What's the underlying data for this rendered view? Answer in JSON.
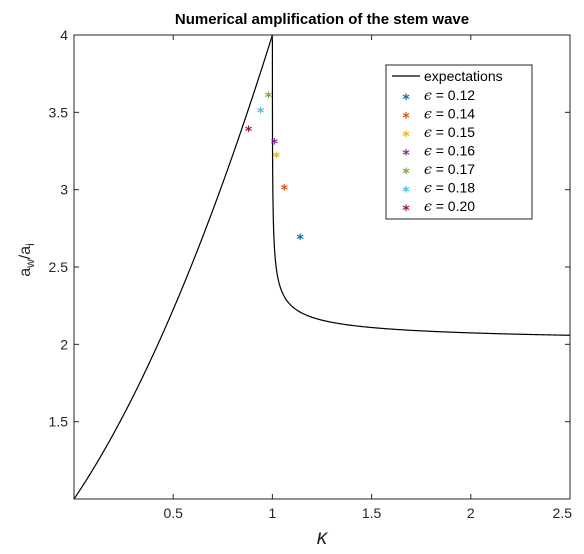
{
  "chart_data": {
    "type": "scatter",
    "title": "Numerical amplification of the stem wave",
    "xlabel": "κ",
    "ylabel": {
      "main": "a",
      "sub1": "w",
      "sep": "/a",
      "sub2": "i"
    },
    "xlim": [
      0,
      2.5
    ],
    "ylim": [
      1,
      4
    ],
    "xticks": [
      {
        "value": 0.5,
        "label": "0.5"
      },
      {
        "value": 1,
        "label": "1"
      },
      {
        "value": 1.5,
        "label": "1.5"
      },
      {
        "value": 2,
        "label": "2"
      },
      {
        "value": 2.5,
        "label": "2.5"
      }
    ],
    "yticks": [
      {
        "value": 1.5,
        "label": "1.5"
      },
      {
        "value": 2,
        "label": "2"
      },
      {
        "value": 2.5,
        "label": "2.5"
      },
      {
        "value": 3,
        "label": "3"
      },
      {
        "value": 3.5,
        "label": "3.5"
      },
      {
        "value": 4,
        "label": "4"
      }
    ],
    "grid": false,
    "legend_position": "top-right",
    "curve": {
      "name": "expectations",
      "color": "#000000"
    },
    "series": [
      {
        "symbol": "ϵ",
        "name": " = 0.12",
        "color": "#0072BD",
        "x": 1.14,
        "y": 2.68
      },
      {
        "symbol": "ϵ",
        "name": " = 0.14",
        "color": "#D95319",
        "x": 1.06,
        "y": 3.0
      },
      {
        "symbol": "ϵ",
        "name": " = 0.15",
        "color": "#EDB120",
        "x": 1.02,
        "y": 3.21
      },
      {
        "symbol": "ϵ",
        "name": " = 0.16",
        "color": "#7E2F8E",
        "x": 1.01,
        "y": 3.3
      },
      {
        "symbol": "ϵ",
        "name": " = 0.17",
        "color": "#77AC30",
        "x": 0.98,
        "y": 3.6
      },
      {
        "symbol": "ϵ",
        "name": " = 0.18",
        "color": "#4DBEEE",
        "x": 0.94,
        "y": 3.5
      },
      {
        "symbol": "ϵ",
        "name": " = 0.20",
        "color": "#A2142F",
        "x": 0.88,
        "y": 3.38
      }
    ]
  }
}
